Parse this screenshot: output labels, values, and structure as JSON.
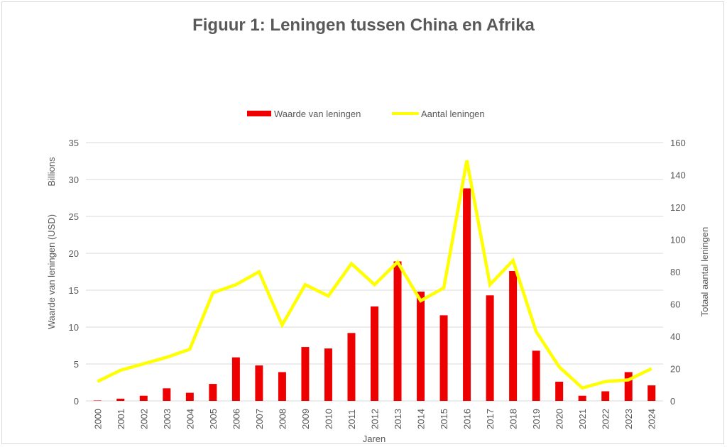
{
  "chart_data": {
    "type": "bar+line",
    "title": "Figuur 1: Leningen tussen China en Afrika",
    "xlabel": "Jaren",
    "ylabel_left": "Waarde van leningen (USD)",
    "ylabel_left_unit": "Billions",
    "ylabel_right": "Totaal aantal leningen",
    "ylim_left": [
      0,
      35
    ],
    "yticks_left": [
      0,
      5,
      10,
      15,
      20,
      25,
      30,
      35
    ],
    "ylim_right": [
      0,
      160
    ],
    "yticks_right": [
      0,
      20,
      40,
      60,
      80,
      100,
      120,
      140,
      160
    ],
    "grid": true,
    "legend_position": "top",
    "categories": [
      "2000",
      "2001",
      "2002",
      "2003",
      "2004",
      "2005",
      "2006",
      "2007",
      "2008",
      "2009",
      "2010",
      "2011",
      "2012",
      "2013",
      "2014",
      "2015",
      "2016",
      "2017",
      "2018",
      "2019",
      "2020",
      "2021",
      "2022",
      "2023",
      "2024"
    ],
    "series": [
      {
        "name": "Waarde van leningen",
        "type": "bar",
        "axis": "left",
        "color": "#ee0000",
        "values": [
          0.05,
          0.3,
          0.7,
          1.7,
          1.1,
          2.3,
          5.9,
          4.8,
          3.9,
          7.3,
          7.1,
          9.2,
          12.8,
          18.9,
          14.8,
          11.6,
          28.8,
          14.3,
          17.6,
          6.8,
          2.6,
          0.7,
          1.3,
          3.9,
          2.1
        ]
      },
      {
        "name": "Aantal leningen",
        "type": "line",
        "axis": "right",
        "color": "#ffff00",
        "values": [
          12,
          19,
          23,
          27,
          32,
          67,
          72,
          80,
          47,
          72,
          65,
          85,
          72,
          86,
          62,
          70,
          149,
          72,
          87,
          43,
          21,
          8,
          12,
          13,
          20
        ]
      }
    ]
  }
}
